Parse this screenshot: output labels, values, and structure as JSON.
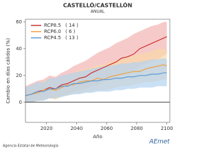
{
  "chart_data": {
    "type": "line",
    "title": "CASTELLÓ/CASTELLÓN",
    "subtitle": "ANUAL",
    "y_label": "Cambio en días cálidos (%)",
    "x_label": "Año",
    "x": [
      2006,
      2010,
      2014,
      2018,
      2022,
      2026,
      2030,
      2034,
      2038,
      2042,
      2046,
      2050,
      2054,
      2058,
      2062,
      2066,
      2070,
      2074,
      2078,
      2082,
      2086,
      2090,
      2094,
      2098,
      2100
    ],
    "xlim": [
      2006,
      2102
    ],
    "xticks": [
      2020,
      2040,
      2060,
      2080,
      2100
    ],
    "ylim": [
      -15,
      62
    ],
    "yticks": [
      0,
      20,
      40,
      60
    ],
    "series": [
      {
        "name": "RCP8.5",
        "count_label": "( 14 )",
        "color": "#cc3333",
        "band_color": "#f4b3b3",
        "values": [
          5,
          6,
          8,
          9,
          11,
          10,
          13,
          14,
          16,
          18,
          19,
          22,
          24,
          26,
          28,
          30,
          33,
          34,
          36,
          40,
          42,
          44,
          46,
          48,
          49
        ],
        "band_upper": [
          12,
          14,
          16,
          17,
          20,
          19,
          22,
          24,
          27,
          29,
          31,
          34,
          37,
          39,
          41,
          44,
          46,
          48,
          51,
          53,
          55,
          57,
          58,
          60,
          60
        ],
        "band_lower": [
          0,
          0,
          1,
          2,
          3,
          3,
          5,
          6,
          8,
          9,
          10,
          12,
          13,
          15,
          17,
          19,
          21,
          22,
          24,
          27,
          29,
          31,
          32,
          35,
          36
        ]
      },
      {
        "name": "RCP6.0",
        "count_label": "(  6 )",
        "color": "#f0a040",
        "band_color": "#f8d9a8",
        "values": [
          5,
          6,
          7,
          9,
          10,
          9,
          11,
          13,
          13,
          15,
          16,
          16,
          18,
          17,
          19,
          20,
          21,
          22,
          23,
          23,
          25,
          26,
          27,
          28,
          27
        ],
        "band_upper": [
          11,
          13,
          14,
          16,
          18,
          17,
          19,
          21,
          22,
          24,
          25,
          26,
          28,
          28,
          30,
          31,
          32,
          34,
          35,
          36,
          37,
          38,
          40,
          40,
          38
        ],
        "band_lower": [
          0,
          0,
          1,
          2,
          3,
          2,
          4,
          5,
          6,
          7,
          8,
          8,
          9,
          9,
          10,
          11,
          12,
          12,
          13,
          14,
          15,
          15,
          16,
          17,
          17
        ]
      },
      {
        "name": "RCP4.5",
        "count_label": "( 13 )",
        "color": "#5b9bd5",
        "band_color": "#b4d3ef",
        "values": [
          5,
          6,
          8,
          8,
          10,
          10,
          12,
          12,
          14,
          14,
          15,
          16,
          16,
          17,
          17,
          18,
          18,
          19,
          19,
          20,
          20,
          21,
          21,
          22,
          22
        ],
        "band_upper": [
          11,
          13,
          15,
          15,
          18,
          18,
          20,
          21,
          22,
          23,
          24,
          25,
          26,
          27,
          27,
          28,
          29,
          29,
          30,
          30,
          31,
          32,
          32,
          33,
          32
        ],
        "band_lower": [
          0,
          0,
          1,
          1,
          3,
          3,
          4,
          5,
          6,
          6,
          7,
          7,
          8,
          8,
          8,
          9,
          9,
          10,
          10,
          11,
          11,
          11,
          12,
          12,
          12
        ]
      }
    ]
  },
  "footer_text": "Agencia Estatal de Meteorología",
  "logo_text": "AEmet"
}
